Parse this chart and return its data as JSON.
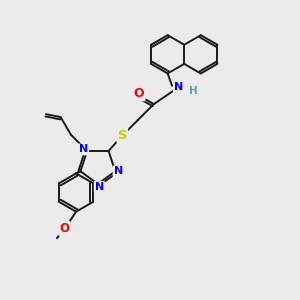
{
  "bg_color": "#ebebeb",
  "bond_color": "#1a1a1a",
  "atom_colors": {
    "N": "#0000ff",
    "O": "#ff0000",
    "S": "#cccc00",
    "H": "#4fa8a8",
    "C": "#1a1a1a"
  },
  "lw": 1.4,
  "fs": 8.0
}
